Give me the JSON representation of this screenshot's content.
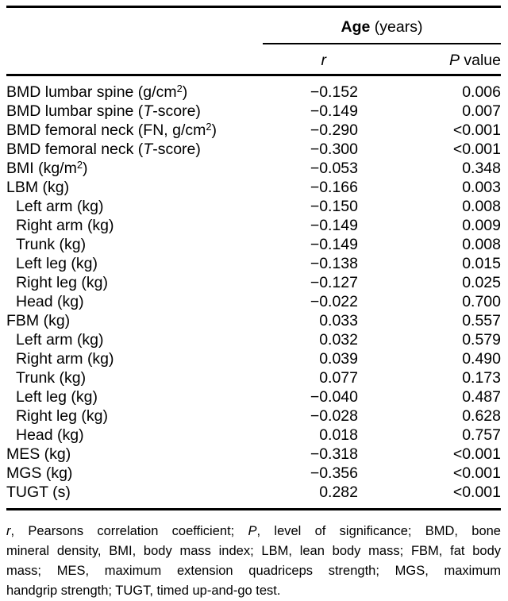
{
  "table": {
    "col_group_header": {
      "segments": [
        {
          "t": "Age",
          "b": true
        },
        {
          "t": " (years)"
        }
      ]
    },
    "col_headers": {
      "r": {
        "segments": [
          {
            "t": "r",
            "i": true
          }
        ]
      },
      "p": {
        "segments": [
          {
            "t": "P",
            "i": true
          },
          {
            "t": " value"
          }
        ]
      }
    },
    "rows": [
      {
        "label": [
          {
            "t": "BMD lumbar spine (g/cm"
          },
          {
            "t": "2",
            "sup": true
          },
          {
            "t": ")"
          }
        ],
        "indent": false,
        "r": "−0.152",
        "p": "0.006"
      },
      {
        "label": [
          {
            "t": "BMD lumbar spine ("
          },
          {
            "t": "T",
            "i": true
          },
          {
            "t": "-score)"
          }
        ],
        "indent": false,
        "r": "−0.149",
        "p": "0.007"
      },
      {
        "label": [
          {
            "t": "BMD femoral neck (FN, g/cm"
          },
          {
            "t": "2",
            "sup": true
          },
          {
            "t": ")"
          }
        ],
        "indent": false,
        "r": "−0.290",
        "p": "<0.001"
      },
      {
        "label": [
          {
            "t": "BMD femoral neck ("
          },
          {
            "t": "T",
            "i": true
          },
          {
            "t": "-score)"
          }
        ],
        "indent": false,
        "r": "−0.300",
        "p": "<0.001"
      },
      {
        "label": [
          {
            "t": "BMI (kg/m"
          },
          {
            "t": "2",
            "sup": true
          },
          {
            "t": ")"
          }
        ],
        "indent": false,
        "r": "−0.053",
        "p": "0.348"
      },
      {
        "label": [
          {
            "t": "LBM (kg)"
          }
        ],
        "indent": false,
        "r": "−0.166",
        "p": "0.003"
      },
      {
        "label": [
          {
            "t": "Left arm (kg)"
          }
        ],
        "indent": true,
        "r": "−0.150",
        "p": "0.008"
      },
      {
        "label": [
          {
            "t": "Right arm (kg)"
          }
        ],
        "indent": true,
        "r": "−0.149",
        "p": "0.009"
      },
      {
        "label": [
          {
            "t": "Trunk (kg)"
          }
        ],
        "indent": true,
        "r": "−0.149",
        "p": "0.008"
      },
      {
        "label": [
          {
            "t": "Left leg (kg)"
          }
        ],
        "indent": true,
        "r": "−0.138",
        "p": "0.015"
      },
      {
        "label": [
          {
            "t": "Right leg (kg)"
          }
        ],
        "indent": true,
        "r": "−0.127",
        "p": "0.025"
      },
      {
        "label": [
          {
            "t": "Head (kg)"
          }
        ],
        "indent": true,
        "r": "−0.022",
        "p": "0.700"
      },
      {
        "label": [
          {
            "t": "FBM (kg)"
          }
        ],
        "indent": false,
        "r": "0.033",
        "p": "0.557"
      },
      {
        "label": [
          {
            "t": "Left arm (kg)"
          }
        ],
        "indent": true,
        "r": "0.032",
        "p": "0.579"
      },
      {
        "label": [
          {
            "t": "Right arm (kg)"
          }
        ],
        "indent": true,
        "r": "0.039",
        "p": "0.490"
      },
      {
        "label": [
          {
            "t": "Trunk (kg)"
          }
        ],
        "indent": true,
        "r": "0.077",
        "p": "0.173"
      },
      {
        "label": [
          {
            "t": "Left leg (kg)"
          }
        ],
        "indent": true,
        "r": "−0.040",
        "p": "0.487"
      },
      {
        "label": [
          {
            "t": "Right leg (kg)"
          }
        ],
        "indent": true,
        "r": "−0.028",
        "p": "0.628"
      },
      {
        "label": [
          {
            "t": "Head (kg)"
          }
        ],
        "indent": true,
        "r": "0.018",
        "p": "0.757"
      },
      {
        "label": [
          {
            "t": "MES (kg)"
          }
        ],
        "indent": false,
        "r": "−0.318",
        "p": "<0.001"
      },
      {
        "label": [
          {
            "t": "MGS (kg)"
          }
        ],
        "indent": false,
        "r": "−0.356",
        "p": "<0.001"
      },
      {
        "label": [
          {
            "t": "TUGT (s)"
          }
        ],
        "indent": false,
        "r": "0.282",
        "p": "<0.001"
      }
    ]
  },
  "footnote": {
    "lines": [
      {
        "segments": [
          {
            "t": "r",
            "i": true
          },
          {
            "t": ", Pearsons correlation coefficient; "
          },
          {
            "t": "P",
            "i": true
          },
          {
            "t": ", level of significance; BMD, bone"
          }
        ]
      },
      {
        "segments": [
          {
            "t": "mineral density, BMI, body mass index; LBM, lean body mass; FBM, fat body"
          }
        ]
      },
      {
        "segments": [
          {
            "t": "mass; MES, maximum extension quadriceps strength; MGS, maximum"
          }
        ]
      },
      {
        "segments": [
          {
            "t": "handgrip strength; TUGT, timed up-and-go test."
          }
        ]
      }
    ]
  }
}
